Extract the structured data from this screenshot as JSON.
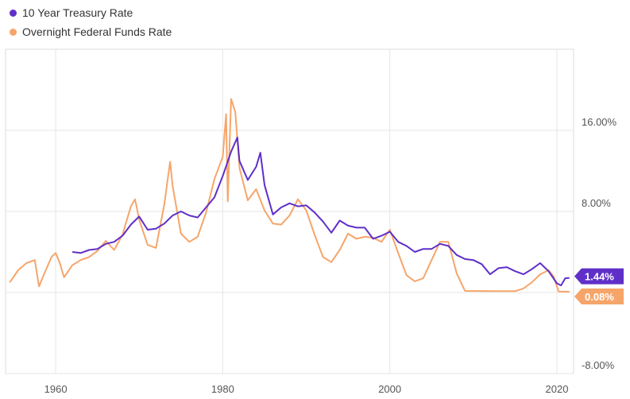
{
  "colors": {
    "treasury": "#5f2fc8",
    "fedfunds": "#f6a56a",
    "grid": "#e6e6e6",
    "frame": "#dcdcdc"
  },
  "legend": [
    {
      "label": "10 Year Treasury Rate",
      "color": "#5f2fc8"
    },
    {
      "label": "Overnight Federal Funds Rate",
      "color": "#f6a56a"
    }
  ],
  "badges": {
    "treasury": {
      "text": "1.44%",
      "color": "#5f2fc8"
    },
    "fedfunds": {
      "text": "0.08%",
      "color": "#f6a56a"
    }
  },
  "chart_data": {
    "type": "line",
    "title": "",
    "xlabel": "",
    "ylabel": "",
    "x_ticks": [
      {
        "value": 1960,
        "label": "1960"
      },
      {
        "value": 1980,
        "label": "1980"
      },
      {
        "value": 2000,
        "label": "2000"
      },
      {
        "value": 2020,
        "label": "2020"
      }
    ],
    "y_ticks": [
      {
        "value": 16,
        "label": "16.00%"
      },
      {
        "value": 8,
        "label": "8.00%"
      },
      {
        "value": -8,
        "label": "-8.00%"
      }
    ],
    "y_gridlines": [
      16,
      8,
      0,
      -8
    ],
    "xlim": [
      1954,
      2022
    ],
    "ylim": [
      -8,
      24
    ],
    "legend_position": "top-left",
    "grid": true,
    "series": [
      {
        "name": "10 Year Treasury Rate",
        "color": "#5f2fc8",
        "points": [
          [
            1962,
            4.0
          ],
          [
            1963,
            3.9
          ],
          [
            1964,
            4.2
          ],
          [
            1965,
            4.3
          ],
          [
            1966,
            4.8
          ],
          [
            1967,
            5.0
          ],
          [
            1968,
            5.6
          ],
          [
            1969,
            6.7
          ],
          [
            1970,
            7.5
          ],
          [
            1971,
            6.2
          ],
          [
            1972,
            6.3
          ],
          [
            1973,
            6.8
          ],
          [
            1974,
            7.6
          ],
          [
            1975,
            8.0
          ],
          [
            1976,
            7.6
          ],
          [
            1977,
            7.4
          ],
          [
            1978,
            8.4
          ],
          [
            1979,
            9.4
          ],
          [
            1980,
            11.5
          ],
          [
            1981,
            13.9
          ],
          [
            1981.75,
            15.3
          ],
          [
            1982,
            13.0
          ],
          [
            1983,
            11.1
          ],
          [
            1984,
            12.4
          ],
          [
            1984.5,
            13.8
          ],
          [
            1985,
            10.6
          ],
          [
            1986,
            7.7
          ],
          [
            1987,
            8.4
          ],
          [
            1988,
            8.8
          ],
          [
            1989,
            8.5
          ],
          [
            1990,
            8.6
          ],
          [
            1991,
            7.9
          ],
          [
            1992,
            7.0
          ],
          [
            1993,
            5.9
          ],
          [
            1994,
            7.1
          ],
          [
            1995,
            6.6
          ],
          [
            1996,
            6.4
          ],
          [
            1997,
            6.4
          ],
          [
            1998,
            5.3
          ],
          [
            1999,
            5.6
          ],
          [
            2000,
            6.0
          ],
          [
            2001,
            5.0
          ],
          [
            2002,
            4.6
          ],
          [
            2003,
            4.0
          ],
          [
            2004,
            4.3
          ],
          [
            2005,
            4.3
          ],
          [
            2006,
            4.8
          ],
          [
            2007,
            4.6
          ],
          [
            2008,
            3.7
          ],
          [
            2009,
            3.3
          ],
          [
            2010,
            3.2
          ],
          [
            2011,
            2.8
          ],
          [
            2012,
            1.8
          ],
          [
            2013,
            2.4
          ],
          [
            2014,
            2.5
          ],
          [
            2015,
            2.1
          ],
          [
            2016,
            1.8
          ],
          [
            2017,
            2.3
          ],
          [
            2018,
            2.9
          ],
          [
            2019,
            2.1
          ],
          [
            2020,
            0.9
          ],
          [
            2020.5,
            0.7
          ],
          [
            2021,
            1.4
          ],
          [
            2021.5,
            1.44
          ]
        ]
      },
      {
        "name": "Overnight Federal Funds Rate",
        "color": "#f6a56a",
        "points": [
          [
            1954.5,
            1.0
          ],
          [
            1955.5,
            2.2
          ],
          [
            1956.5,
            2.9
          ],
          [
            1957.5,
            3.2
          ],
          [
            1958,
            0.6
          ],
          [
            1958.5,
            1.6
          ],
          [
            1959.5,
            3.5
          ],
          [
            1960,
            3.9
          ],
          [
            1960.5,
            2.9
          ],
          [
            1961,
            1.5
          ],
          [
            1962,
            2.7
          ],
          [
            1963,
            3.2
          ],
          [
            1964,
            3.5
          ],
          [
            1965,
            4.1
          ],
          [
            1966,
            5.1
          ],
          [
            1967,
            4.2
          ],
          [
            1968,
            5.7
          ],
          [
            1969,
            8.5
          ],
          [
            1969.5,
            9.2
          ],
          [
            1970,
            7.2
          ],
          [
            1971,
            4.7
          ],
          [
            1972,
            4.4
          ],
          [
            1973,
            8.7
          ],
          [
            1973.7,
            12.9
          ],
          [
            1974,
            10.5
          ],
          [
            1975,
            5.8
          ],
          [
            1976,
            5.0
          ],
          [
            1977,
            5.5
          ],
          [
            1978,
            7.9
          ],
          [
            1979,
            11.2
          ],
          [
            1980,
            13.4
          ],
          [
            1980.4,
            17.6
          ],
          [
            1980.6,
            9.0
          ],
          [
            1981,
            19.1
          ],
          [
            1981.5,
            17.8
          ],
          [
            1982,
            12.3
          ],
          [
            1983,
            9.1
          ],
          [
            1984,
            10.2
          ],
          [
            1985,
            8.1
          ],
          [
            1986,
            6.8
          ],
          [
            1987,
            6.7
          ],
          [
            1988,
            7.6
          ],
          [
            1989,
            9.2
          ],
          [
            1990,
            8.1
          ],
          [
            1991,
            5.7
          ],
          [
            1992,
            3.5
          ],
          [
            1993,
            3.0
          ],
          [
            1994,
            4.2
          ],
          [
            1995,
            5.8
          ],
          [
            1996,
            5.3
          ],
          [
            1997,
            5.5
          ],
          [
            1998,
            5.4
          ],
          [
            1999,
            5.0
          ],
          [
            2000,
            6.2
          ],
          [
            2001,
            3.9
          ],
          [
            2002,
            1.7
          ],
          [
            2003,
            1.1
          ],
          [
            2004,
            1.4
          ],
          [
            2005,
            3.2
          ],
          [
            2006,
            5.0
          ],
          [
            2007,
            5.0
          ],
          [
            2008,
            1.9
          ],
          [
            2009,
            0.16
          ],
          [
            2012,
            0.14
          ],
          [
            2015,
            0.13
          ],
          [
            2016,
            0.4
          ],
          [
            2017,
            1.0
          ],
          [
            2018,
            1.8
          ],
          [
            2019,
            2.2
          ],
          [
            2019.6,
            1.6
          ],
          [
            2020.2,
            0.1
          ],
          [
            2021,
            0.08
          ],
          [
            2021.5,
            0.08
          ]
        ]
      }
    ]
  }
}
